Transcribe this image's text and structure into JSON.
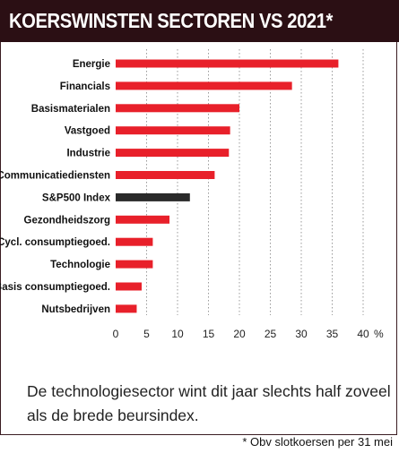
{
  "header": {
    "title": "KOERSWINSTEN SECTOREN VS 2021*"
  },
  "chart_data": {
    "type": "bar",
    "orientation": "horizontal",
    "title": "KOERSWINSTEN SECTOREN VS 2021*",
    "categories": [
      "Energie",
      "Financials",
      "Basismaterialen",
      "Vastgoed",
      "Industrie",
      "Communicatiediensten",
      "S&P500 Index",
      "Gezondheidszorg",
      "Cycl. consumptiegoed.",
      "Technologie",
      "Basis consumptiegoed.",
      "Nutsbedrijven"
    ],
    "values": [
      36,
      28.5,
      20,
      18.5,
      18.3,
      16,
      12,
      8.7,
      6,
      6,
      4.2,
      3.4
    ],
    "xlim": [
      0,
      40
    ],
    "xticks": [
      "0",
      "5",
      "10",
      "15",
      "20",
      "25",
      "30",
      "35",
      "40"
    ],
    "x_unit": "%",
    "colors": {
      "sector": "#e8202a",
      "index": "#2a2a2a"
    },
    "highlight_category": "S&P500 Index",
    "grid": true,
    "grid_style": "dotted vertical"
  },
  "caption": "De technologiesector wint dit jaar slechts half zoveel als de brede beursindex.",
  "footnote": "* Obv slotkoersen per 31 mei"
}
